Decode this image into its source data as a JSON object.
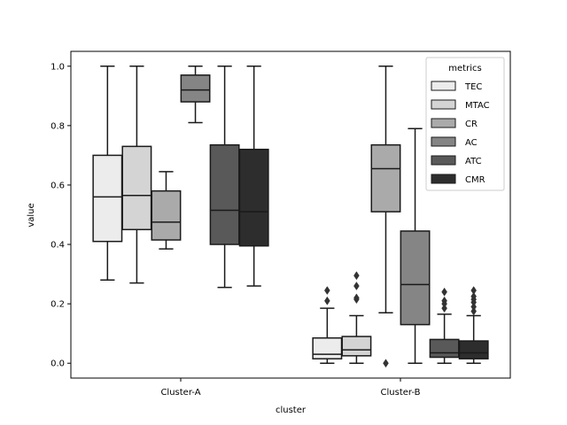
{
  "chart_data": {
    "type": "box",
    "xlabel": "cluster",
    "ylabel": "value",
    "categories": [
      "Cluster-A",
      "Cluster-B"
    ],
    "ylim": [
      -0.05,
      1.05
    ],
    "yticks": [
      0.0,
      0.2,
      0.4,
      0.6,
      0.8,
      1.0
    ],
    "ytick_labels": [
      "0.0",
      "0.2",
      "0.4",
      "0.6",
      "0.8",
      "1.0"
    ],
    "grid": false,
    "legend": {
      "title": "metrics",
      "placement": "top-right",
      "entries": [
        "TEC",
        "MTAC",
        "CR",
        "AC",
        "ATC",
        "CMR"
      ]
    },
    "series": [
      {
        "name": "TEC",
        "color": "#ececec",
        "boxes": [
          {
            "category": "Cluster-A",
            "whisker_low": 0.28,
            "q1": 0.41,
            "median": 0.56,
            "q3": 0.7,
            "whisker_high": 1.0,
            "outliers": []
          },
          {
            "category": "Cluster-B",
            "whisker_low": 0.0,
            "q1": 0.015,
            "median": 0.03,
            "q3": 0.085,
            "whisker_high": 0.185,
            "outliers": [
              0.21,
              0.245
            ]
          }
        ]
      },
      {
        "name": "MTAC",
        "color": "#d4d4d4",
        "boxes": [
          {
            "category": "Cluster-A",
            "whisker_low": 0.27,
            "q1": 0.45,
            "median": 0.565,
            "q3": 0.73,
            "whisker_high": 1.0,
            "outliers": []
          },
          {
            "category": "Cluster-B",
            "whisker_low": 0.0,
            "q1": 0.025,
            "median": 0.045,
            "q3": 0.09,
            "whisker_high": 0.16,
            "outliers": [
              0.215,
              0.22,
              0.26,
              0.295
            ]
          }
        ]
      },
      {
        "name": "CR",
        "color": "#aaaaaa",
        "boxes": [
          {
            "category": "Cluster-A",
            "whisker_low": 0.385,
            "q1": 0.415,
            "median": 0.475,
            "q3": 0.58,
            "whisker_high": 0.645,
            "outliers": []
          },
          {
            "category": "Cluster-B",
            "whisker_low": 0.17,
            "q1": 0.51,
            "median": 0.655,
            "q3": 0.735,
            "whisker_high": 1.0,
            "outliers": [
              0.0
            ]
          }
        ]
      },
      {
        "name": "AC",
        "color": "#858585",
        "boxes": [
          {
            "category": "Cluster-A",
            "whisker_low": 0.81,
            "q1": 0.88,
            "median": 0.92,
            "q3": 0.97,
            "whisker_high": 1.0,
            "outliers": []
          },
          {
            "category": "Cluster-B",
            "whisker_low": 0.0,
            "q1": 0.13,
            "median": 0.265,
            "q3": 0.445,
            "whisker_high": 0.79,
            "outliers": []
          }
        ]
      },
      {
        "name": "ATC",
        "color": "#595959",
        "boxes": [
          {
            "category": "Cluster-A",
            "whisker_low": 0.255,
            "q1": 0.4,
            "median": 0.515,
            "q3": 0.735,
            "whisker_high": 1.0,
            "outliers": []
          },
          {
            "category": "Cluster-B",
            "whisker_low": 0.0,
            "q1": 0.02,
            "median": 0.035,
            "q3": 0.08,
            "whisker_high": 0.165,
            "outliers": [
              0.185,
              0.2,
              0.21,
              0.24
            ]
          }
        ]
      },
      {
        "name": "CMR",
        "color": "#2d2d2d",
        "boxes": [
          {
            "category": "Cluster-A",
            "whisker_low": 0.26,
            "q1": 0.395,
            "median": 0.51,
            "q3": 0.72,
            "whisker_high": 1.0,
            "outliers": []
          },
          {
            "category": "Cluster-B",
            "whisker_low": 0.0,
            "q1": 0.015,
            "median": 0.035,
            "q3": 0.075,
            "whisker_high": 0.16,
            "outliers": [
              0.175,
              0.19,
              0.205,
              0.215,
              0.225,
              0.245
            ]
          }
        ]
      }
    ]
  }
}
